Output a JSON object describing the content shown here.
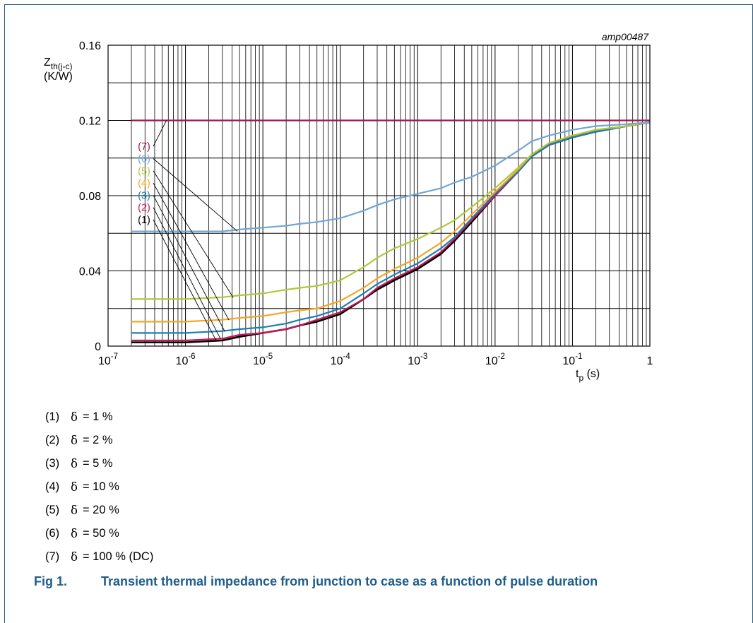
{
  "chart_data": {
    "type": "line",
    "id_label": "amp00487",
    "y_axis": {
      "symbol": "Z",
      "sub": "th(j-c)",
      "unit": "(K/W)",
      "ticks": [
        "0",
        "0.04",
        "0.08",
        "0.12",
        "0.16"
      ],
      "lim": [
        0,
        0.16
      ]
    },
    "x_axis": {
      "symbol": "t",
      "sub": "p",
      "unit": "(s)",
      "scale": "log",
      "lim": [
        1e-07,
        1
      ],
      "ticks": [
        [
          "10",
          "-7"
        ],
        [
          "10",
          "-6"
        ],
        [
          "10",
          "-5"
        ],
        [
          "10",
          "-4"
        ],
        [
          "10",
          "-3"
        ],
        [
          "10",
          "-2"
        ],
        [
          "10",
          "-1"
        ],
        [
          "1",
          ""
        ]
      ]
    },
    "grid": true,
    "x": [
      2e-07,
      5e-07,
      1e-06,
      3e-06,
      5e-06,
      1e-05,
      2e-05,
      3e-05,
      5e-05,
      0.0001,
      0.0002,
      0.0003,
      0.0005,
      0.001,
      0.002,
      0.003,
      0.005,
      0.01,
      0.02,
      0.03,
      0.05,
      0.1,
      0.2,
      0.5,
      1
    ],
    "series": [
      {
        "name": "(1)",
        "color": "#000000",
        "values": [
          0.002,
          0.002,
          0.002,
          0.003,
          0.005,
          0.007,
          0.009,
          0.011,
          0.013,
          0.017,
          0.025,
          0.03,
          0.035,
          0.041,
          0.049,
          0.056,
          0.066,
          0.08,
          0.093,
          0.101,
          0.107,
          0.111,
          0.114,
          0.117,
          0.119
        ]
      },
      {
        "name": "(2)",
        "color": "#c8175b",
        "values": [
          0.003,
          0.003,
          0.003,
          0.004,
          0.006,
          0.007,
          0.009,
          0.011,
          0.014,
          0.018,
          0.025,
          0.031,
          0.036,
          0.042,
          0.05,
          0.057,
          0.067,
          0.08,
          0.093,
          0.101,
          0.107,
          0.111,
          0.114,
          0.117,
          0.119
        ]
      },
      {
        "name": "(3)",
        "color": "#1b7fb3",
        "values": [
          0.007,
          0.007,
          0.007,
          0.008,
          0.009,
          0.01,
          0.012,
          0.014,
          0.016,
          0.02,
          0.028,
          0.033,
          0.038,
          0.044,
          0.052,
          0.058,
          0.068,
          0.081,
          0.093,
          0.101,
          0.107,
          0.111,
          0.114,
          0.117,
          0.119
        ]
      },
      {
        "name": "(4)",
        "color": "#f5a623",
        "values": [
          0.013,
          0.013,
          0.013,
          0.014,
          0.015,
          0.016,
          0.018,
          0.019,
          0.02,
          0.024,
          0.031,
          0.036,
          0.041,
          0.047,
          0.055,
          0.061,
          0.07,
          0.082,
          0.094,
          0.102,
          0.108,
          0.112,
          0.115,
          0.117,
          0.119
        ]
      },
      {
        "name": "(5)",
        "color": "#aec93a",
        "values": [
          0.025,
          0.025,
          0.025,
          0.026,
          0.027,
          0.028,
          0.03,
          0.031,
          0.032,
          0.035,
          0.042,
          0.047,
          0.052,
          0.057,
          0.063,
          0.067,
          0.074,
          0.084,
          0.095,
          0.102,
          0.108,
          0.112,
          0.115,
          0.117,
          0.119
        ]
      },
      {
        "name": "(6)",
        "color": "#6fa8d6",
        "values": [
          0.061,
          0.061,
          0.061,
          0.061,
          0.062,
          0.063,
          0.064,
          0.065,
          0.066,
          0.068,
          0.072,
          0.075,
          0.078,
          0.081,
          0.084,
          0.087,
          0.09,
          0.096,
          0.104,
          0.109,
          0.112,
          0.115,
          0.117,
          0.118,
          0.119
        ]
      },
      {
        "name": "(7)",
        "color": "#a0184e",
        "values": [
          0.12,
          0.12,
          0.12,
          0.12,
          0.12,
          0.12,
          0.12,
          0.12,
          0.12,
          0.12,
          0.12,
          0.12,
          0.12,
          0.12,
          0.12,
          0.12,
          0.12,
          0.12,
          0.12,
          0.12,
          0.12,
          0.12,
          0.12,
          0.12,
          0.12
        ]
      }
    ]
  },
  "legend": [
    {
      "num": "(1)",
      "delta": "δ",
      "text": "= 1 %"
    },
    {
      "num": "(2)",
      "delta": "δ",
      "text": "= 2 %"
    },
    {
      "num": "(3)",
      "delta": "δ",
      "text": "= 5 %"
    },
    {
      "num": "(4)",
      "delta": "δ",
      "text": "= 10 %"
    },
    {
      "num": "(5)",
      "delta": "δ",
      "text": "= 20 %"
    },
    {
      "num": "(6)",
      "delta": "δ",
      "text": "= 50 %"
    },
    {
      "num": "(7)",
      "delta": "δ",
      "text": "= 100 % (DC)"
    }
  ],
  "caption": {
    "label": "Fig 1.",
    "text": "Transient thermal impedance from junction to case as a function of pulse duration"
  }
}
